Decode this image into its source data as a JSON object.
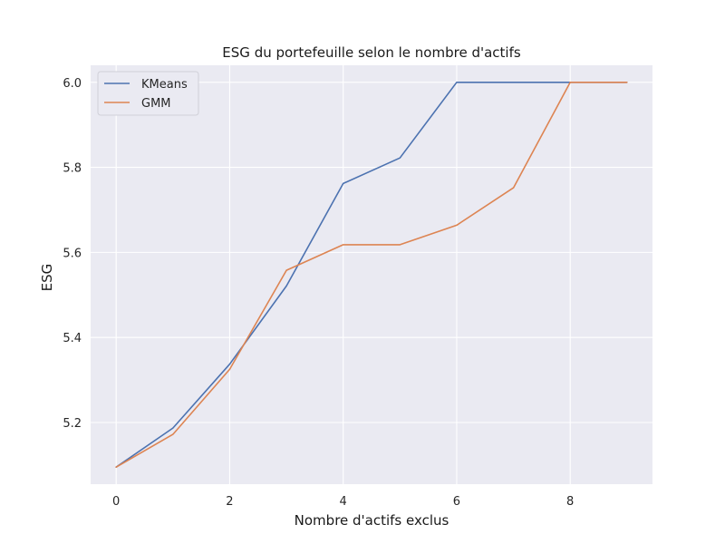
{
  "chart_data": {
    "type": "line",
    "title": "ESG du portefeuille selon le nombre d'actifs",
    "xlabel": "Nombre d'actifs exclus",
    "ylabel": "ESG",
    "xlim": [
      -0.45,
      9.45
    ],
    "ylim": [
      5.055,
      6.04
    ],
    "xticks": [
      0,
      2,
      4,
      6,
      8
    ],
    "xtick_labels": [
      "0",
      "2",
      "4",
      "6",
      "8"
    ],
    "yticks": [
      5.2,
      5.4,
      5.6,
      5.8,
      6.0
    ],
    "ytick_labels": [
      "5.2",
      "5.4",
      "5.6",
      "5.8",
      "6.0"
    ],
    "grid": true,
    "legend_position": "top-left",
    "series": [
      {
        "name": "KMeans",
        "color": "#4c72b0",
        "x": [
          0,
          1,
          2,
          3,
          4,
          5,
          6,
          7,
          8,
          9
        ],
        "y": [
          5.095,
          5.187,
          5.337,
          5.521,
          5.762,
          5.822,
          6.0,
          6.0,
          6.0,
          6.0
        ]
      },
      {
        "name": "GMM",
        "color": "#dd8452",
        "x": [
          0,
          1,
          2,
          3,
          4,
          5,
          6,
          7,
          8,
          9
        ],
        "y": [
          5.095,
          5.172,
          5.325,
          5.558,
          5.618,
          5.618,
          5.664,
          5.752,
          6.0,
          6.0
        ]
      }
    ]
  }
}
